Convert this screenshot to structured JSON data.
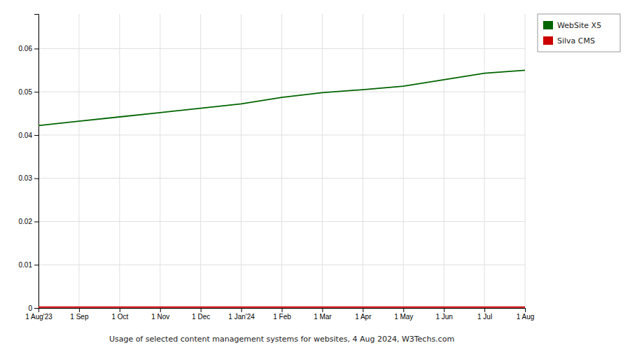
{
  "chart_data": {
    "type": "line",
    "caption": "Usage of selected content management systems for websites, 4 Aug 2024, W3Techs.com",
    "categories": [
      "1 Aug'23",
      "1 Sep",
      "1 Oct",
      "1 Nov",
      "1 Dec",
      "1 Jan'24",
      "1 Feb",
      "1 Mar",
      "1 Apr",
      "1 May",
      "1 Jun",
      "1 Jul",
      "1 Aug"
    ],
    "series": [
      {
        "name": "WebSite X5",
        "color": "#006400",
        "values": [
          0.0422,
          0.0432,
          0.0442,
          0.0452,
          0.0462,
          0.0472,
          0.0487,
          0.0498,
          0.0505,
          0.0513,
          0.0528,
          0.0543,
          0.055
        ]
      },
      {
        "name": "Silva CMS",
        "color": "#cc0000",
        "values": [
          0.0002,
          0.0002,
          0.0002,
          0.0002,
          0.0002,
          0.0002,
          0.0002,
          0.0002,
          0.0002,
          0.0002,
          0.0002,
          0.0002,
          0.0002
        ]
      }
    ],
    "ylim": [
      0,
      0.068
    ],
    "yticks": [
      0,
      0.01,
      0.02,
      0.03,
      0.04,
      0.05,
      0.06
    ],
    "grid": true,
    "legend": "right"
  }
}
